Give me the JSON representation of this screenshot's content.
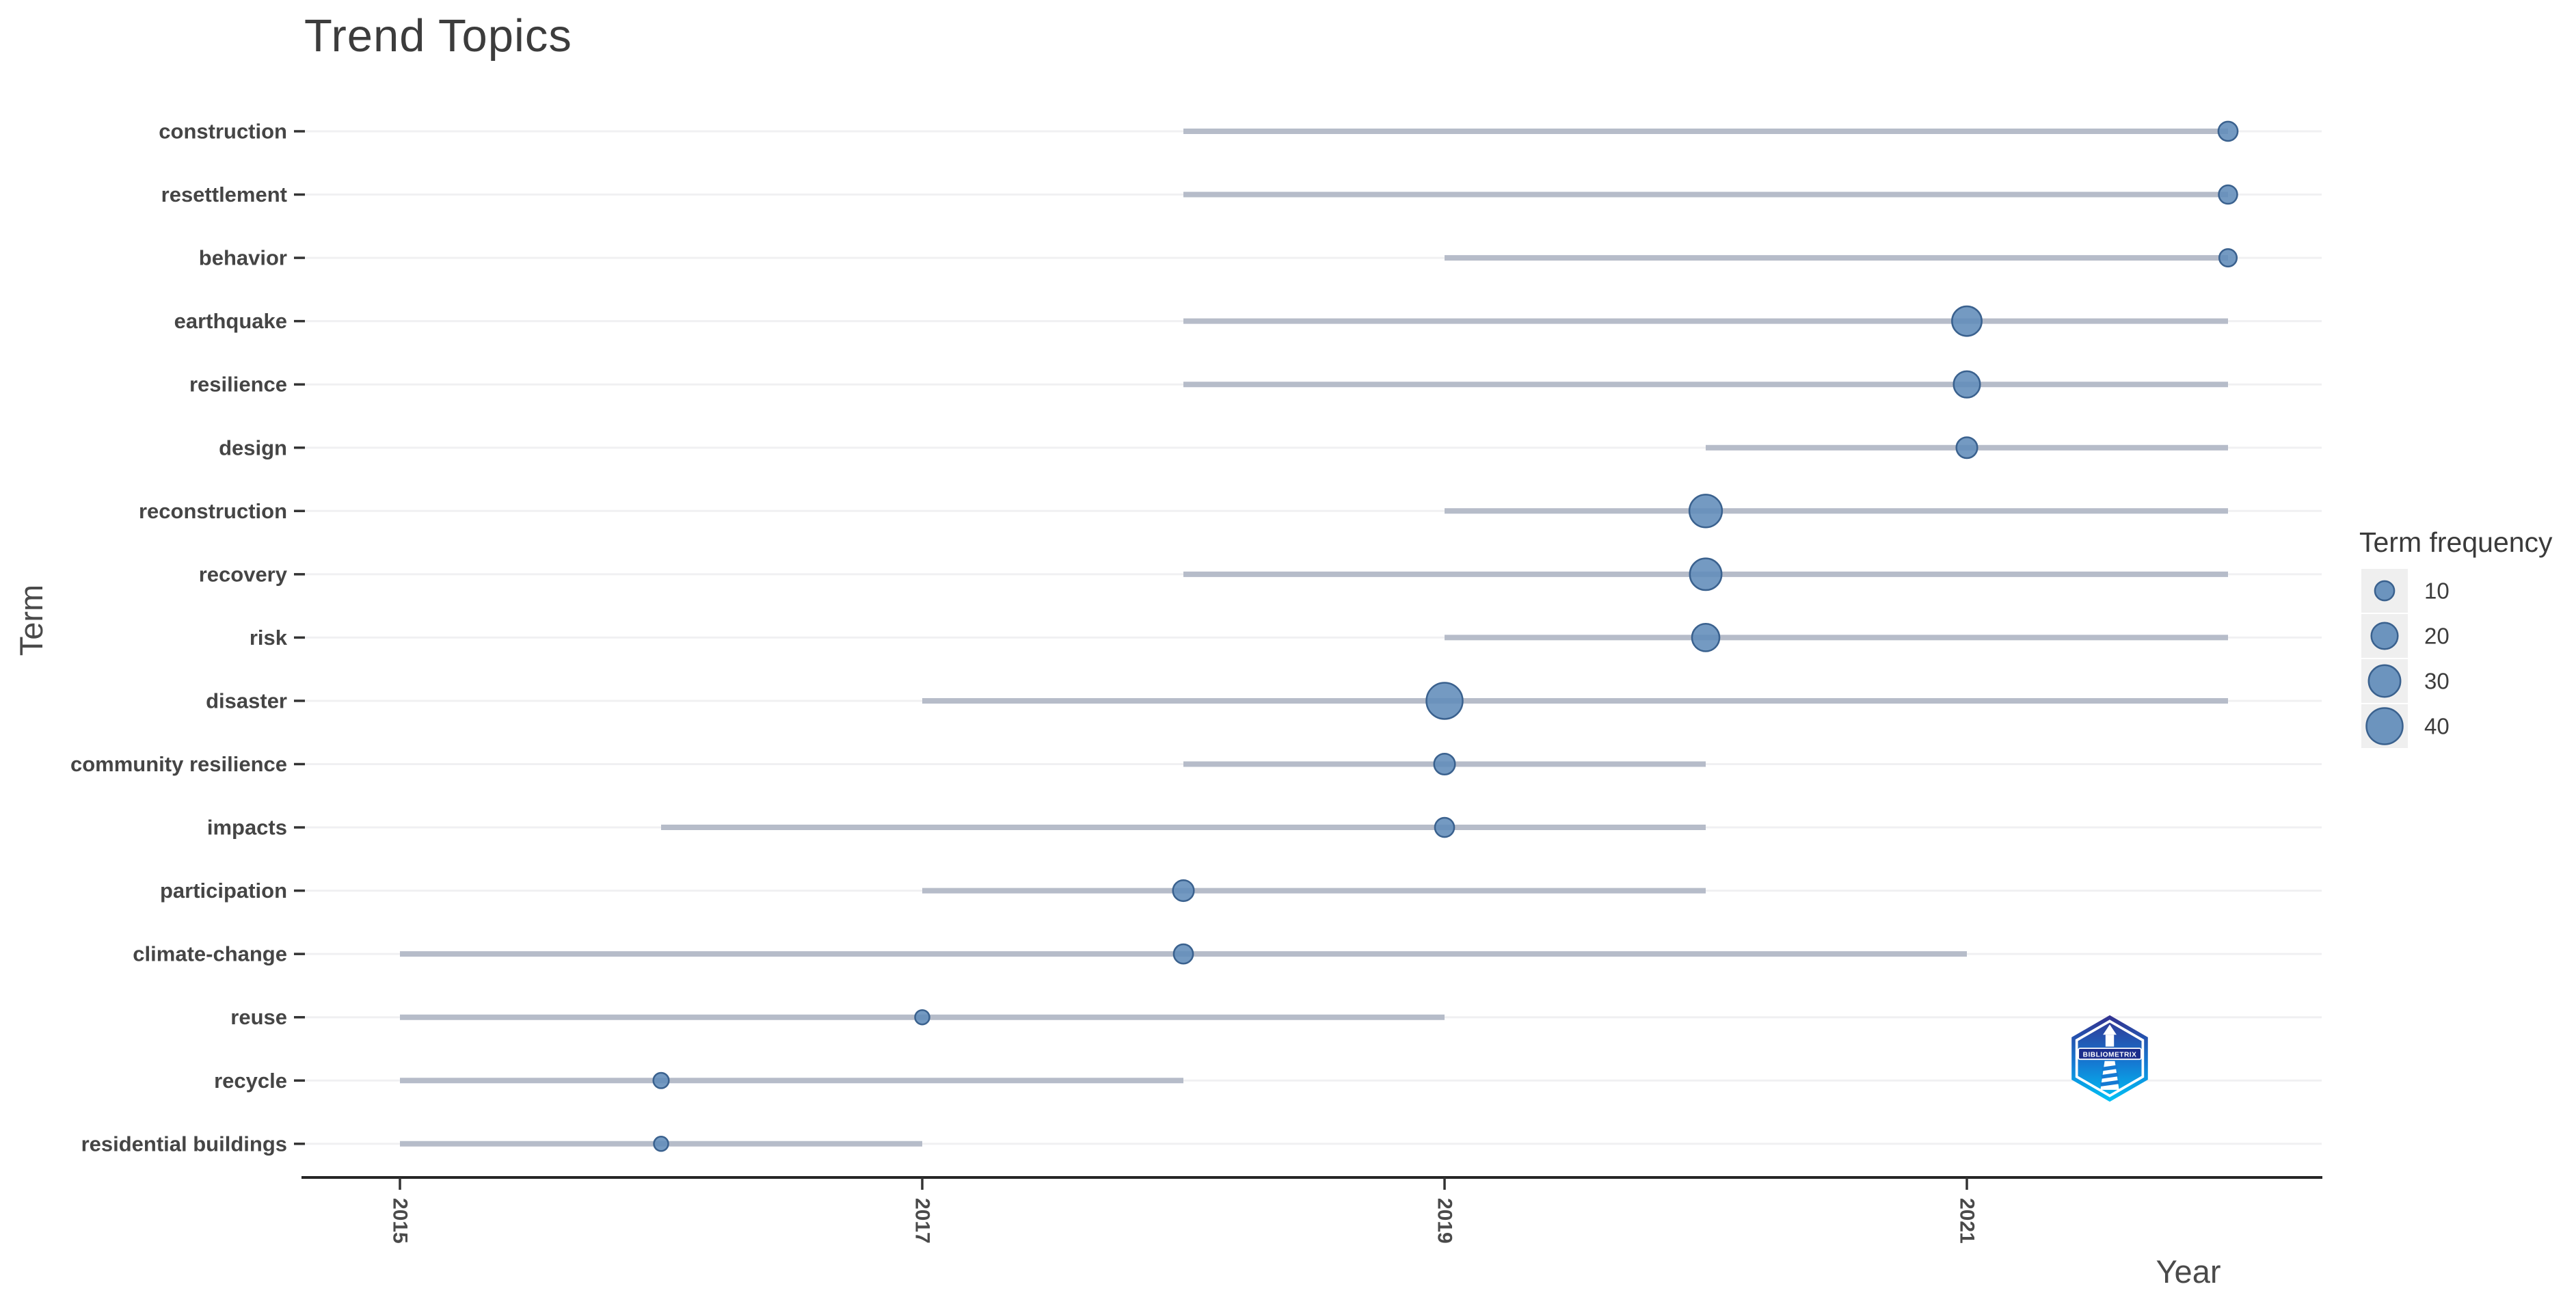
{
  "chart": {
    "title": "Trend Topics",
    "xlabel": "Year",
    "ylabel": "Term",
    "legend_title": "Term frequency"
  },
  "logo": {
    "text": "BIBLIOMETRIX"
  },
  "colors": {
    "dot_fill": "#618cba",
    "dot_stroke": "#3a618e",
    "range_line": "#b6bcc9",
    "gridline": "#f0f0f2",
    "axis_line": "#262626",
    "tick_mark": "#333333",
    "term_label": "#454545",
    "tick_label": "#4a4a4a",
    "legend_key_bg": "#efefef",
    "legend_label": "#3d3d3d"
  },
  "chart_data": {
    "type": "scatter",
    "title": "Trend Topics",
    "xlabel": "Year",
    "ylabel": "Term",
    "grid": "horizontal-major-only",
    "legend_position": "right",
    "x_ticks": [
      "2015",
      "2017",
      "2019",
      "2021"
    ],
    "xlim": [
      2014.6,
      2022.4
    ],
    "legend": {
      "title": "Term frequency",
      "sizes": [
        10,
        20,
        30,
        40
      ]
    },
    "terms": [
      {
        "term": "construction",
        "year_start": 2018,
        "year_end": 2022,
        "year_peak": 2022,
        "freq": 10
      },
      {
        "term": "resettlement",
        "year_start": 2018,
        "year_end": 2022,
        "year_peak": 2022,
        "freq": 9
      },
      {
        "term": "behavior",
        "year_start": 2019,
        "year_end": 2022,
        "year_peak": 2022,
        "freq": 8
      },
      {
        "term": "earthquake",
        "year_start": 2018,
        "year_end": 2022,
        "year_peak": 2021,
        "freq": 26
      },
      {
        "term": "resilience",
        "year_start": 2018,
        "year_end": 2022,
        "year_peak": 2021,
        "freq": 20
      },
      {
        "term": "design",
        "year_start": 2020,
        "year_end": 2022,
        "year_peak": 2021,
        "freq": 12
      },
      {
        "term": "reconstruction",
        "year_start": 2019,
        "year_end": 2022,
        "year_peak": 2020,
        "freq": 32
      },
      {
        "term": "recovery",
        "year_start": 2018,
        "year_end": 2022,
        "year_peak": 2020,
        "freq": 30
      },
      {
        "term": "risk",
        "year_start": 2019,
        "year_end": 2022,
        "year_peak": 2020,
        "freq": 22
      },
      {
        "term": "disaster",
        "year_start": 2017,
        "year_end": 2022,
        "year_peak": 2019,
        "freq": 40
      },
      {
        "term": "community resilience",
        "year_start": 2018,
        "year_end": 2020,
        "year_peak": 2019,
        "freq": 12
      },
      {
        "term": "impacts",
        "year_start": 2016,
        "year_end": 2020,
        "year_peak": 2019,
        "freq": 10
      },
      {
        "term": "participation",
        "year_start": 2017,
        "year_end": 2020,
        "year_peak": 2018,
        "freq": 12
      },
      {
        "term": "climate-change",
        "year_start": 2015,
        "year_end": 2021,
        "year_peak": 2018,
        "freq": 10
      },
      {
        "term": "reuse",
        "year_start": 2015,
        "year_end": 2019,
        "year_peak": 2017,
        "freq": 5
      },
      {
        "term": "recycle",
        "year_start": 2015,
        "year_end": 2018,
        "year_peak": 2016,
        "freq": 6
      },
      {
        "term": "residential buildings",
        "year_start": 2015,
        "year_end": 2017,
        "year_peak": 2016,
        "freq": 5
      }
    ]
  }
}
